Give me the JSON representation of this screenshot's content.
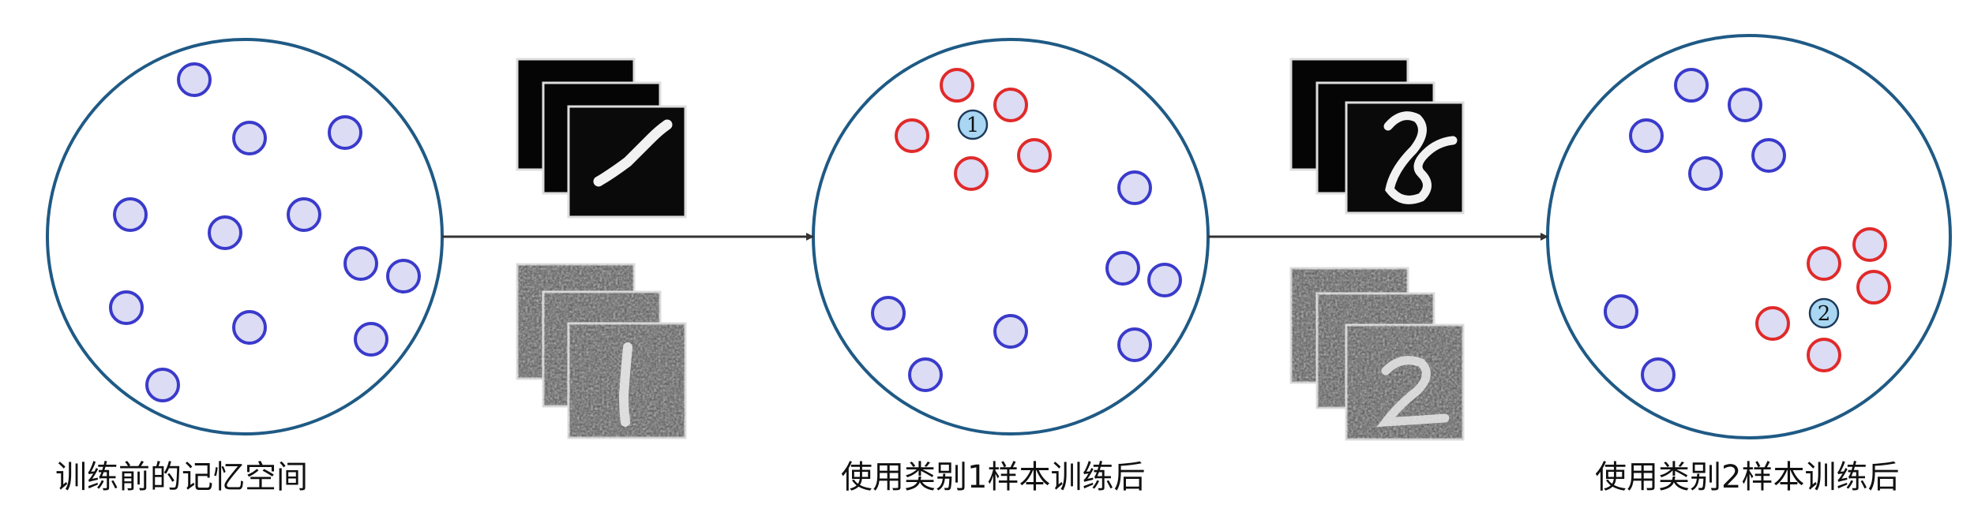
{
  "captions": {
    "before": "训练前的记忆空间",
    "after_class1": "使用类别1样本训练后",
    "after_class2": "使用类别2样本训练后"
  },
  "markers": {
    "class1": "1",
    "class2": "2"
  },
  "colors": {
    "circle_stroke": "#1f5a85",
    "memory_fill": "#dcdcf4",
    "memory_blue_stroke": "#3a3acb",
    "memory_red_stroke": "#e02a2a",
    "marker_fill": "#a9d6f2",
    "arrow": "#333333"
  }
}
